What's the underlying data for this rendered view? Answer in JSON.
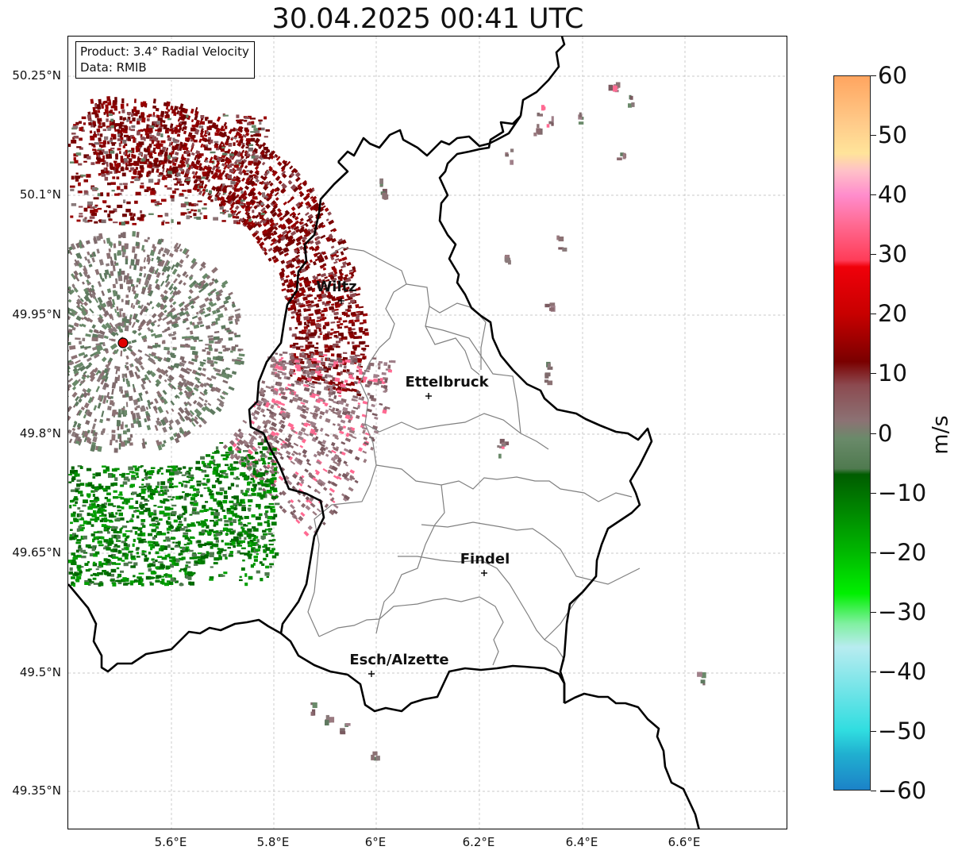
{
  "title": "30.04.2025 00:41 UTC",
  "info": {
    "product": "Product: 3.4° Radial Velocity",
    "data_source": "Data: RMIB"
  },
  "axes": {
    "lat_labels": [
      "50.25°N",
      "50.1°N",
      "49.95°N",
      "49.8°N",
      "49.65°N",
      "49.5°N",
      "49.35°N"
    ],
    "lon_labels": [
      "5.6°E",
      "5.8°E",
      "6°E",
      "6.2°E",
      "6.4°E",
      "6.6°E"
    ]
  },
  "cities": [
    {
      "name": "Wiltz"
    },
    {
      "name": "Ettelbruck"
    },
    {
      "name": "Findel"
    },
    {
      "name": "Esch/Alzette"
    }
  ],
  "colorbar": {
    "unit": "m/s",
    "ticks": [
      "60",
      "50",
      "40",
      "30",
      "20",
      "10",
      "0",
      "−10",
      "−20",
      "−30",
      "−40",
      "−50",
      "−60"
    ],
    "range": [
      -60,
      60
    ],
    "stops": [
      {
        "v": 60,
        "c": "#ffa560"
      },
      {
        "v": 52,
        "c": "#ffcb8a"
      },
      {
        "v": 47,
        "c": "#ffe49a"
      },
      {
        "v": 44,
        "c": "#ffc0c8"
      },
      {
        "v": 40,
        "c": "#ff8ccc"
      },
      {
        "v": 35,
        "c": "#ff6a92"
      },
      {
        "v": 29,
        "c": "#ff3c58"
      },
      {
        "v": 28,
        "c": "#f0000a"
      },
      {
        "v": 20,
        "c": "#c80000"
      },
      {
        "v": 12,
        "c": "#7a0000"
      },
      {
        "v": 8,
        "c": "#8c4a50"
      },
      {
        "v": 2,
        "c": "#8c7274"
      },
      {
        "v": -1,
        "c": "#6a8a6a"
      },
      {
        "v": -6,
        "c": "#4f7a4f"
      },
      {
        "v": -7,
        "c": "#005c00"
      },
      {
        "v": -20,
        "c": "#00b800"
      },
      {
        "v": -27,
        "c": "#00f000"
      },
      {
        "v": -32,
        "c": "#80f0a0"
      },
      {
        "v": -36,
        "c": "#b8ecf0"
      },
      {
        "v": -50,
        "c": "#30dde0"
      },
      {
        "v": -54,
        "c": "#20b0d0"
      },
      {
        "v": -60,
        "c": "#1c82c8"
      }
    ]
  },
  "colors": {
    "border": "#000000",
    "cantons": "#808080",
    "grid": "#b0b0b0",
    "radar_site": "#e00000"
  }
}
